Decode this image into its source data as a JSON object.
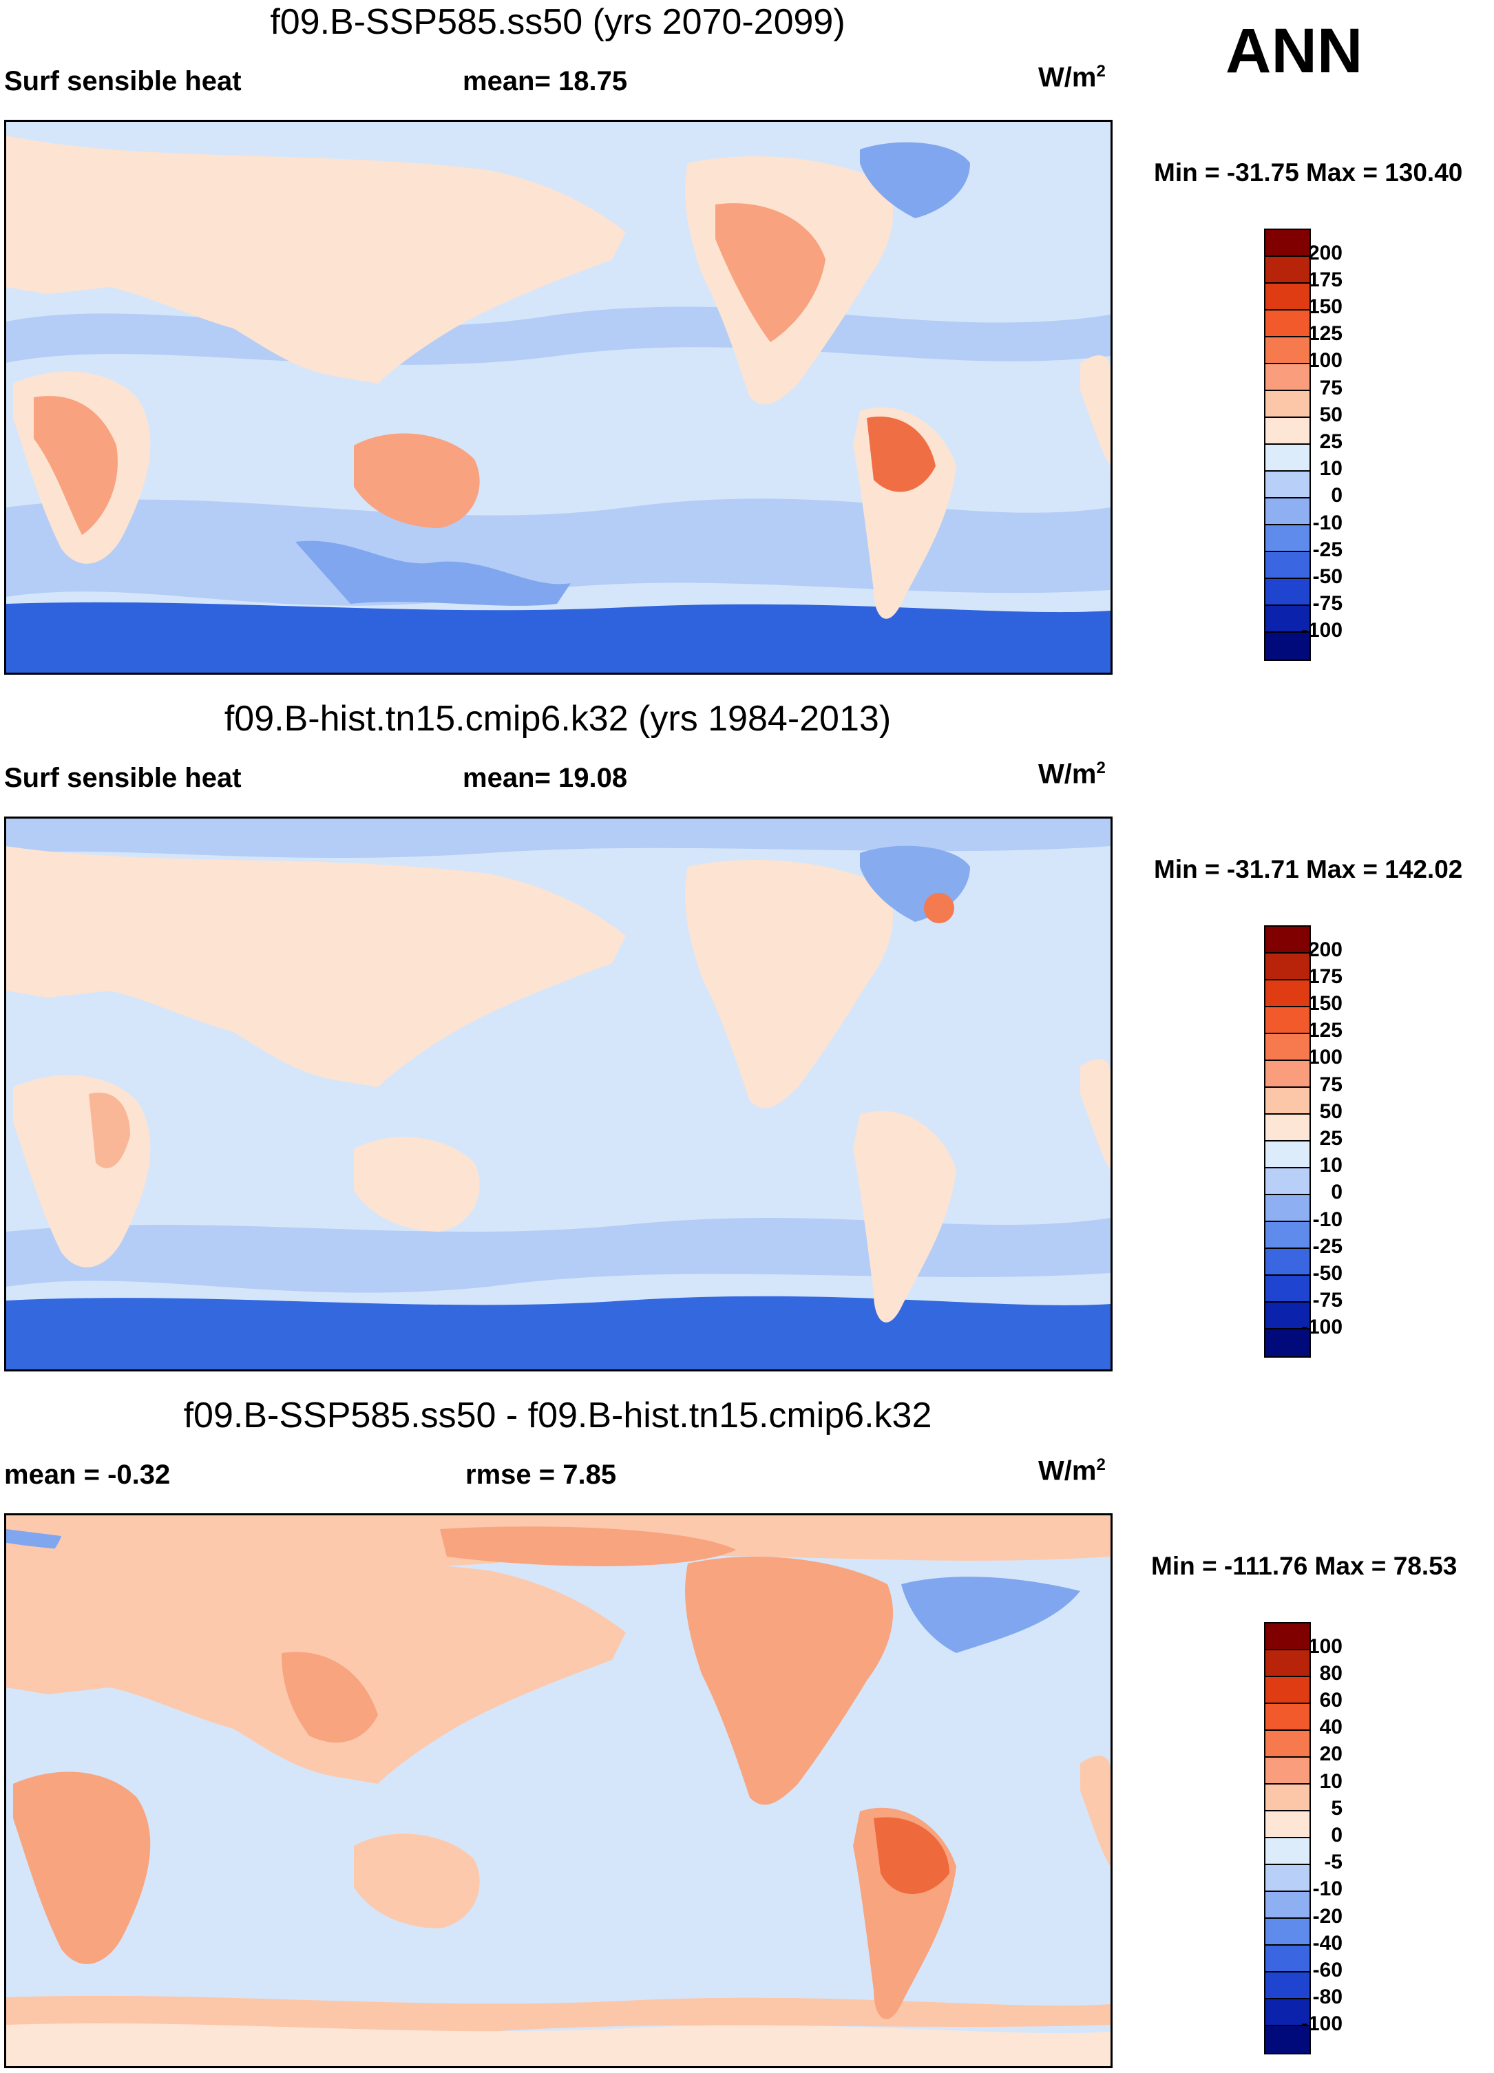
{
  "season": "ANN",
  "panels": [
    {
      "title": "f09.B-SSP585.ss50 (yrs 2070-2099)",
      "left_label": "Surf sensible heat",
      "center_label": "mean=  18.75",
      "units_base": "W/m",
      "units_exp": "2",
      "minmax": "Min = -31.75 Max = 130.40",
      "colorbar": {
        "labels": [
          "200",
          "175",
          "150",
          "125",
          "100",
          "75",
          "50",
          "25",
          "10",
          "0",
          "-10",
          "-25",
          "-50",
          "-75",
          "-100"
        ],
        "colors": [
          "#800000",
          "#b8240a",
          "#e03c14",
          "#f25a2c",
          "#f77a4e",
          "#fa9d7c",
          "#fcc6a8",
          "#fde6d6",
          "#dcecfb",
          "#b8d0f7",
          "#8eb0f2",
          "#5f8cec",
          "#3a66e2",
          "#1f44cf",
          "#0b22ad",
          "#000a7a"
        ]
      },
      "fields": {
        "ocean": "#d6e6fa",
        "land": "#fde3d2",
        "warm": "#f8a27f",
        "hot": "#ef6e43",
        "cool": "#b4cdf6",
        "cold": "#7fa6ee",
        "ice": "#2f62dd"
      }
    },
    {
      "title": "f09.B-hist.tn15.cmip6.k32 (yrs 1984-2013)",
      "left_label": "Surf sensible heat",
      "center_label": "mean=  19.08",
      "units_base": "W/m",
      "units_exp": "2",
      "minmax": "Min = -31.71 Max = 142.02",
      "colorbar": {
        "labels": [
          "200",
          "175",
          "150",
          "125",
          "100",
          "75",
          "50",
          "25",
          "10",
          "0",
          "-10",
          "-25",
          "-50",
          "-75",
          "-100"
        ],
        "colors": [
          "#800000",
          "#b8240a",
          "#e03c14",
          "#f25a2c",
          "#f77a4e",
          "#fa9d7c",
          "#fcc6a8",
          "#fde6d6",
          "#dcecfb",
          "#b8d0f7",
          "#8eb0f2",
          "#5f8cec",
          "#3a66e2",
          "#1f44cf",
          "#0b22ad",
          "#000a7a"
        ]
      },
      "fields": {
        "ocean": "#d6e6fa",
        "land": "#fde3d2",
        "warm": "#fab797",
        "hot": "#f47a50",
        "cool": "#b4cdf6",
        "cold": "#86abef",
        "ice": "#3468df"
      }
    },
    {
      "title": "f09.B-SSP585.ss50 - f09.B-hist.tn15.cmip6.k32",
      "left_label": "mean =  -0.32",
      "center_label": "rmse =   7.85",
      "units_base": "W/m",
      "units_exp": "2",
      "minmax": "Min = -111.76 Max =  78.53",
      "colorbar": {
        "labels": [
          "100",
          "80",
          "60",
          "40",
          "20",
          "10",
          "5",
          "0",
          "-5",
          "-10",
          "-20",
          "-40",
          "-60",
          "-80",
          "-100"
        ],
        "colors": [
          "#800000",
          "#b8240a",
          "#e03c14",
          "#f25a2c",
          "#f77a4e",
          "#fa9d7c",
          "#fcc6a8",
          "#fde6d6",
          "#dcecfb",
          "#b8d0f7",
          "#8eb0f2",
          "#5f8cec",
          "#3a66e2",
          "#1f44cf",
          "#0b22ad",
          "#000a7a"
        ]
      },
      "fields": {
        "ocean": "#d6e6fa",
        "land": "#fcc9ad",
        "warm": "#f8a47f",
        "hot": "#ee6a3d",
        "cool": "#fde6d6",
        "cold": "#7fa6ee",
        "ice": "#fcc6a8"
      }
    }
  ]
}
